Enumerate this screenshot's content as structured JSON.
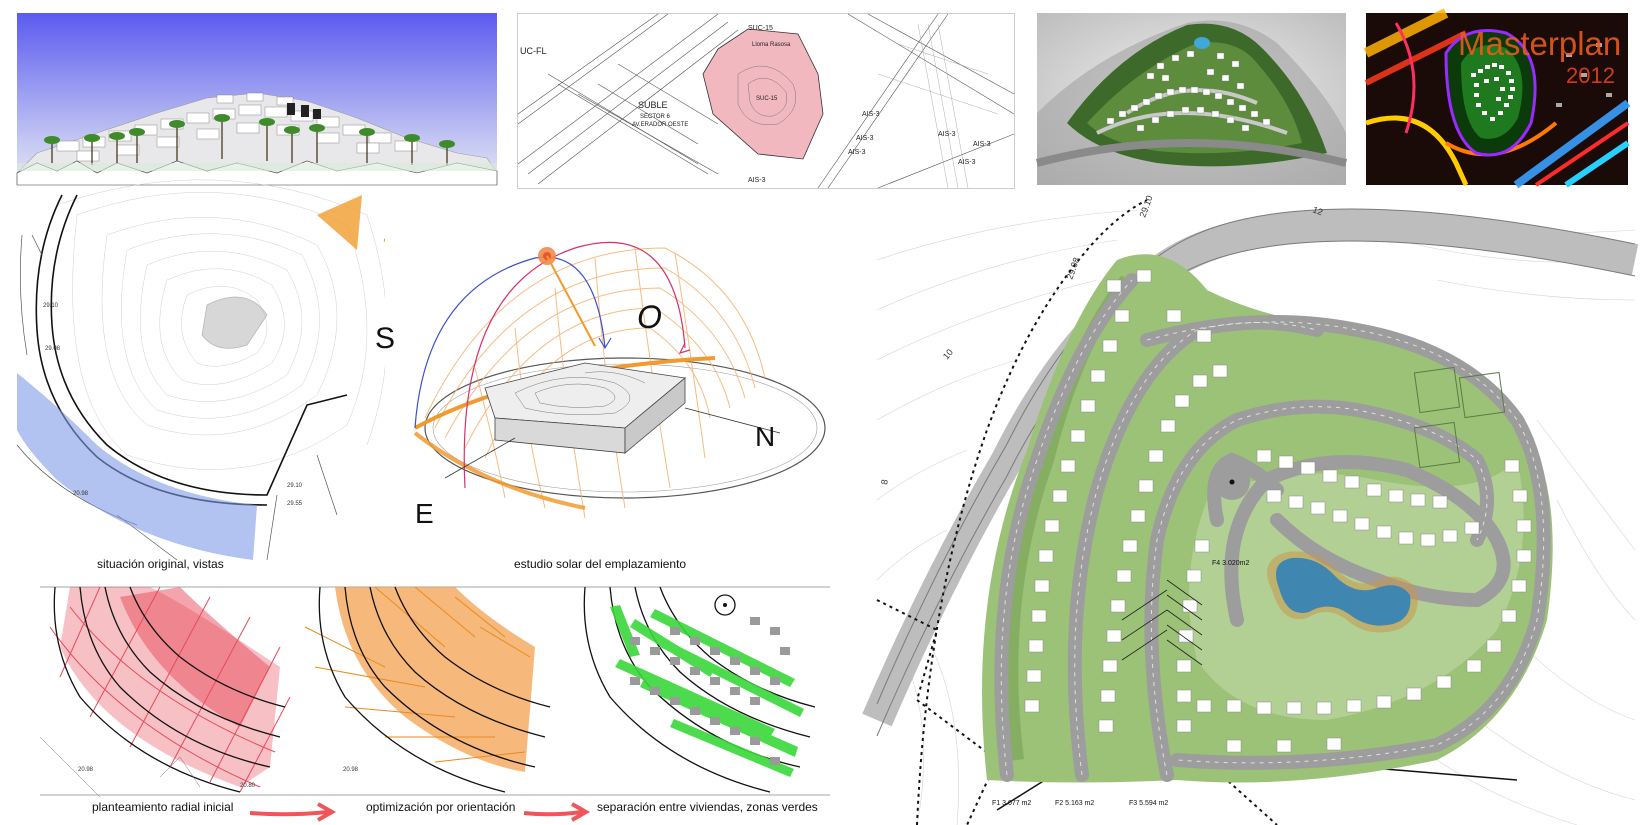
{
  "top_row": {
    "site_plan_labels": {
      "uc_fl": "UC-FL",
      "suc15_top": "SUC-15",
      "parcel_name": "Lloma Rasosa",
      "suc15_center": "SUC-15",
      "suble": "SUBLE",
      "sector": "SECTOR 6",
      "area_name": "AV.ERADOR OESTE",
      "ais3_a": "AIS-3",
      "ais3_b": "AIS-3",
      "ais3_c": "AIS-3",
      "ais3_d": "AIS-3",
      "ais3_e": "AIS-3",
      "ais3_f": "AIS-3",
      "ais3_g": "AIS-3"
    },
    "masterplan": {
      "title": "Masterplan",
      "year": "2012"
    }
  },
  "middle_left": {
    "contour_labels": [
      "29.10",
      "29.08",
      "20.98",
      "29.10",
      "29.55"
    ],
    "caption_views": "situación original, vistas",
    "caption_solar": "estudio solar del emplazamiento",
    "compass": {
      "s": "S",
      "o": "O",
      "n": "N",
      "e": "E"
    }
  },
  "bottom_left": {
    "contour_labels": [
      "20.98",
      "20.80",
      "20.98"
    ],
    "caption_radial": "planteamiento radial inicial",
    "caption_orientation": "optimización por orientación",
    "caption_separation": "separación entre viviendas, zonas verdes"
  },
  "master_plan": {
    "road_labels": [
      "29.10",
      "29.08",
      "10",
      "12",
      "8"
    ],
    "phase_f1": "F1 3.077 m2",
    "phase_f2": "F2 5.163 m2",
    "phase_f3": "F3 5.594 m2",
    "phase_f4": "F4 3.020m2"
  },
  "colors": {
    "sky_top": "#5b5bf0",
    "sky_bottom": "#d9dcf5",
    "parcel_pink": "#f2b8c0",
    "view_blue": "#7f9be8",
    "sun_orange": "#f29a2e",
    "radial_red": "#e84a5a",
    "orientation_orange": "#f3a24f",
    "green_zone": "#39d83a",
    "grass": "#9cc278",
    "pond": "#3f86b0",
    "road": "#b9b9b9",
    "arrow_red": "#f0555a",
    "neon_bg": "#1a0a08"
  }
}
